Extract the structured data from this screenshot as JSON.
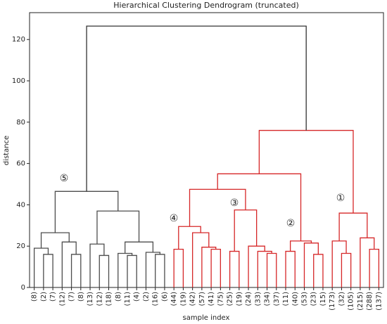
{
  "chart_data": {
    "type": "dendrogram",
    "title": "Hierarchical Clustering Dendrogram (truncated)",
    "xlabel": "sample index",
    "ylabel": "distance",
    "ylim": [
      0,
      133
    ],
    "yticks": [
      0,
      20,
      40,
      60,
      80,
      100,
      120
    ],
    "leaves": [
      "(8)",
      "(2)",
      "(7)",
      "(12)",
      "(7)",
      "(8)",
      "(13)",
      "(12)",
      "(18)",
      "(8)",
      "(11)",
      "(4)",
      "(2)",
      "(16)",
      "(6)",
      "(44)",
      "(19)",
      "(42)",
      "(57)",
      "(41)",
      "(75)",
      "(25)",
      "(19)",
      "(24)",
      "(33)",
      "(34)",
      "(37)",
      "(11)",
      "(40)",
      "(53)",
      "(23)",
      "(15)",
      "(173)",
      "(32)",
      "(105)",
      "(215)",
      "(288)",
      "(137)"
    ],
    "merges": [
      {
        "a": 1,
        "b": 2,
        "height": 16,
        "color": "#4d4d4d"
      },
      {
        "a": 0,
        "b": 38,
        "height": 19,
        "color": "#4d4d4d"
      },
      {
        "a": 4,
        "b": 5,
        "height": 16,
        "color": "#4d4d4d"
      },
      {
        "a": 3,
        "b": 40,
        "height": 22,
        "color": "#4d4d4d"
      },
      {
        "a": 39,
        "b": 41,
        "height": 26.5,
        "color": "#4d4d4d"
      },
      {
        "a": 7,
        "b": 8,
        "height": 15.5,
        "color": "#4d4d4d"
      },
      {
        "a": 6,
        "b": 43,
        "height": 21,
        "color": "#4d4d4d"
      },
      {
        "a": 10,
        "b": 11,
        "height": 15.5,
        "color": "#4d4d4d"
      },
      {
        "a": 9,
        "b": 45,
        "height": 16.5,
        "color": "#4d4d4d"
      },
      {
        "a": 13,
        "b": 14,
        "height": 16,
        "color": "#4d4d4d"
      },
      {
        "a": 12,
        "b": 47,
        "height": 17,
        "color": "#4d4d4d"
      },
      {
        "a": 46,
        "b": 48,
        "height": 22,
        "color": "#4d4d4d"
      },
      {
        "a": 44,
        "b": 49,
        "height": 37,
        "color": "#4d4d4d"
      },
      {
        "a": 42,
        "b": 50,
        "height": 46.5,
        "color": "#4d4d4d"
      },
      {
        "a": 15,
        "b": 16,
        "height": 18.5,
        "color": "#d62728"
      },
      {
        "a": 19,
        "b": 20,
        "height": 18.5,
        "color": "#d62728"
      },
      {
        "a": 18,
        "b": 53,
        "height": 19.5,
        "color": "#d62728"
      },
      {
        "a": 17,
        "b": 54,
        "height": 26.5,
        "color": "#d62728"
      },
      {
        "a": 52,
        "b": 55,
        "height": 29.5,
        "color": "#d62728"
      },
      {
        "a": 21,
        "b": 22,
        "height": 17.5,
        "color": "#d62728"
      },
      {
        "a": 25,
        "b": 26,
        "height": 16.5,
        "color": "#d62728"
      },
      {
        "a": 24,
        "b": 58,
        "height": 17.5,
        "color": "#d62728"
      },
      {
        "a": 23,
        "b": 59,
        "height": 20,
        "color": "#d62728"
      },
      {
        "a": 57,
        "b": 60,
        "height": 37.5,
        "color": "#d62728"
      },
      {
        "a": 56,
        "b": 61,
        "height": 47.5,
        "color": "#d62728"
      },
      {
        "a": 27,
        "b": 28,
        "height": 17.5,
        "color": "#d62728"
      },
      {
        "a": 30,
        "b": 31,
        "height": 16,
        "color": "#d62728"
      },
      {
        "a": 29,
        "b": 64,
        "height": 21.5,
        "color": "#d62728"
      },
      {
        "a": 63,
        "b": 65,
        "height": 22.5,
        "color": "#d62728"
      },
      {
        "a": 62,
        "b": 66,
        "height": 55,
        "color": "#d62728"
      },
      {
        "a": 33,
        "b": 34,
        "height": 16.5,
        "color": "#d62728"
      },
      {
        "a": 32,
        "b": 68,
        "height": 22.5,
        "color": "#d62728"
      },
      {
        "a": 36,
        "b": 37,
        "height": 18.5,
        "color": "#d62728"
      },
      {
        "a": 35,
        "b": 70,
        "height": 24,
        "color": "#d62728"
      },
      {
        "a": 69,
        "b": 71,
        "height": 36,
        "color": "#d62728"
      },
      {
        "a": 67,
        "b": 72,
        "height": 76,
        "color": "#d62728"
      },
      {
        "a": 51,
        "b": 73,
        "height": 126.5,
        "color": "#333333"
      }
    ],
    "annotations": [
      "⑤",
      "④",
      "③",
      "②",
      "①"
    ]
  }
}
